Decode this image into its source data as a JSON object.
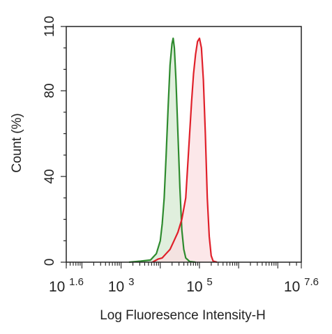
{
  "chart_data": {
    "type": "area",
    "xlabel": "Log Fluoresence Intensity-H",
    "ylabel": "Count  (%)",
    "x_scale": "log",
    "xlim": [
      1.6,
      7.6
    ],
    "ylim": [
      0,
      110
    ],
    "grid": false,
    "legend": "none",
    "x_ticks": [
      {
        "base": "10",
        "exp": "1.6",
        "value": 1.6
      },
      {
        "base": "10",
        "exp": "3",
        "value": 3
      },
      {
        "base": "10",
        "exp": "5",
        "value": 5
      },
      {
        "base": "10",
        "exp": "7.6",
        "value": 7.6
      }
    ],
    "y_ticks": [
      {
        "label": "0",
        "value": 0
      },
      {
        "label": "40",
        "value": 40
      },
      {
        "label": "80",
        "value": 80
      },
      {
        "label": "110",
        "value": 110
      }
    ],
    "series": [
      {
        "color": "#2e8b2e",
        "fill": "#d6ead2",
        "points": [
          [
            3.2,
            0
          ],
          [
            3.5,
            0.5
          ],
          [
            3.75,
            1
          ],
          [
            3.9,
            4
          ],
          [
            4.0,
            10
          ],
          [
            4.05,
            18
          ],
          [
            4.1,
            30
          ],
          [
            4.15,
            50
          ],
          [
            4.2,
            72
          ],
          [
            4.25,
            92
          ],
          [
            4.3,
            102
          ],
          [
            4.33,
            104.5
          ],
          [
            4.36,
            100
          ],
          [
            4.4,
            85
          ],
          [
            4.45,
            60
          ],
          [
            4.5,
            35
          ],
          [
            4.55,
            15
          ],
          [
            4.6,
            6
          ],
          [
            4.65,
            2
          ],
          [
            4.75,
            0.3
          ],
          [
            4.9,
            0
          ]
        ]
      },
      {
        "color": "#e0202a",
        "fill": "#fbdfe2",
        "points": [
          [
            3.8,
            0
          ],
          [
            3.95,
            1.5
          ],
          [
            4.05,
            2
          ],
          [
            4.15,
            4
          ],
          [
            4.25,
            6
          ],
          [
            4.35,
            10
          ],
          [
            4.45,
            14
          ],
          [
            4.55,
            20
          ],
          [
            4.65,
            30
          ],
          [
            4.7,
            45
          ],
          [
            4.75,
            60
          ],
          [
            4.8,
            75
          ],
          [
            4.85,
            88
          ],
          [
            4.9,
            97
          ],
          [
            4.95,
            103
          ],
          [
            5.0,
            104.5
          ],
          [
            5.05,
            100
          ],
          [
            5.1,
            85
          ],
          [
            5.15,
            60
          ],
          [
            5.2,
            30
          ],
          [
            5.25,
            12
          ],
          [
            5.3,
            3
          ],
          [
            5.35,
            0.5
          ],
          [
            5.45,
            0
          ]
        ]
      }
    ]
  }
}
